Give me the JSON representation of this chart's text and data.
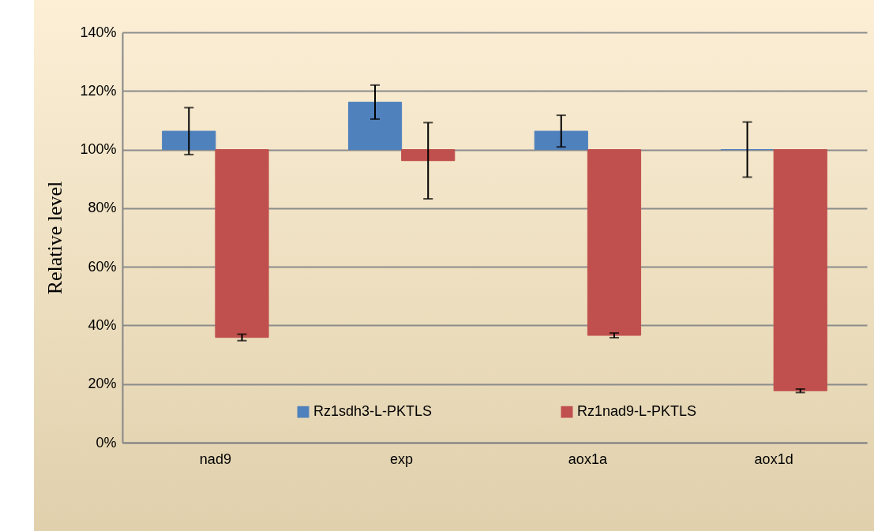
{
  "chart_data": {
    "type": "bar",
    "ylabel": "Relative level",
    "categories": [
      "nad9",
      "exp",
      "aox1a",
      "aox1d"
    ],
    "series": [
      {
        "name": "Rz1sdh3-L-PKTLS",
        "color": "#4f81bd",
        "base": [
          100,
          100,
          100,
          100
        ],
        "values": [
          6.3,
          16.2,
          6.3,
          0
        ],
        "errors": [
          8,
          5.8,
          5.4,
          9.4
        ]
      },
      {
        "name": "Rz1nad9-L-PKTLS",
        "color": "#c0504d",
        "base": [
          100,
          100,
          100,
          100
        ],
        "values": [
          -64.1,
          -3.8,
          -63.4,
          -82.3
        ],
        "errors": [
          1.1,
          13,
          0.8,
          0.6
        ]
      }
    ],
    "ylim": [
      0,
      140
    ],
    "yticks": [
      {
        "value": 0,
        "label": "0%"
      },
      {
        "value": 20,
        "label": "20%"
      },
      {
        "value": 40,
        "label": "40%"
      },
      {
        "value": 60,
        "label": "60%"
      },
      {
        "value": 80,
        "label": "80%"
      },
      {
        "value": 100,
        "label": "100%"
      },
      {
        "value": 120,
        "label": "120%"
      },
      {
        "value": 140,
        "label": "140%"
      }
    ],
    "grid": "y",
    "legend": "bottom"
  }
}
